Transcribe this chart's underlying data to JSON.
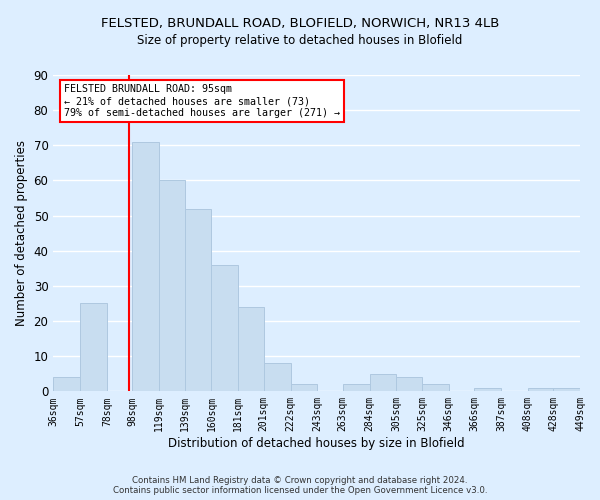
{
  "title_line1": "FELSTED, BRUNDALL ROAD, BLOFIELD, NORWICH, NR13 4LB",
  "title_line2": "Size of property relative to detached houses in Blofield",
  "xlabel": "Distribution of detached houses by size in Blofield",
  "ylabel": "Number of detached properties",
  "bar_color": "#c8ddf0",
  "bar_edge_color": "#aec8e0",
  "bins": [
    36,
    57,
    78,
    98,
    119,
    139,
    160,
    181,
    201,
    222,
    243,
    263,
    284,
    305,
    325,
    346,
    366,
    387,
    408,
    428,
    449
  ],
  "counts": [
    4,
    25,
    0,
    71,
    60,
    52,
    36,
    24,
    8,
    2,
    0,
    2,
    5,
    4,
    2,
    0,
    1,
    0,
    1,
    1
  ],
  "tick_labels": [
    "36sqm",
    "57sqm",
    "78sqm",
    "98sqm",
    "119sqm",
    "139sqm",
    "160sqm",
    "181sqm",
    "201sqm",
    "222sqm",
    "243sqm",
    "263sqm",
    "284sqm",
    "305sqm",
    "325sqm",
    "346sqm",
    "366sqm",
    "387sqm",
    "408sqm",
    "428sqm",
    "449sqm"
  ],
  "ylim": [
    0,
    90
  ],
  "yticks": [
    0,
    10,
    20,
    30,
    40,
    50,
    60,
    70,
    80,
    90
  ],
  "vline_x": 95,
  "ann_line1": "FELSTED BRUNDALL ROAD: 95sqm",
  "ann_line2": "← 21% of detached houses are smaller (73)",
  "ann_line3": "79% of semi-detached houses are larger (271) →",
  "footer_text": "Contains HM Land Registry data © Crown copyright and database right 2024.\nContains public sector information licensed under the Open Government Licence v3.0.",
  "background_color": "#ddeeff",
  "plot_bg_color": "#ddeeff",
  "grid_color": "#ffffff"
}
